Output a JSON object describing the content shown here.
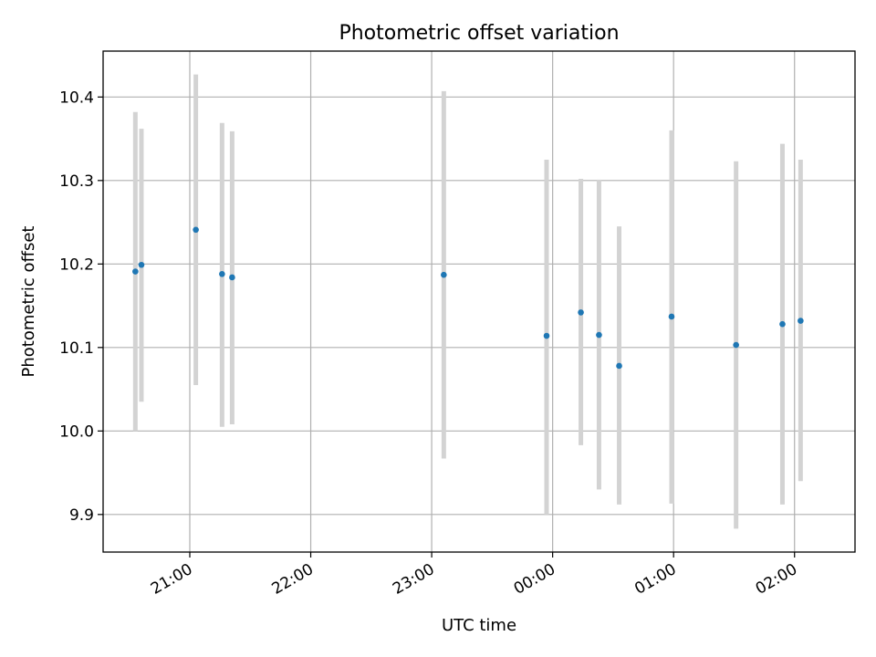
{
  "chart_data": {
    "type": "scatter",
    "title": "Photometric offset variation",
    "xlabel": "UTC time",
    "ylabel": "Photometric offset",
    "x_tick_labels": [
      "21:00",
      "22:00",
      "23:00",
      "00:00",
      "01:00",
      "02:00"
    ],
    "y_tick_labels": [
      "9.9",
      "10.0",
      "10.1",
      "10.2",
      "10.3",
      "10.4"
    ],
    "xlim": [
      "20:17",
      "02:30"
    ],
    "ylim": [
      9.855,
      10.455
    ],
    "grid": true,
    "colors": {
      "point": "#1f77b4",
      "errorbar": "#d3d3d3",
      "grid": "#b0b0b0"
    },
    "series": [
      {
        "x": [
          "20:33",
          "20:36",
          "21:03",
          "21:16",
          "21:21",
          "23:06",
          "23:57",
          "00:14",
          "00:23",
          "00:33",
          "00:59",
          "01:31",
          "01:54",
          "02:03"
        ],
        "y": [
          10.191,
          10.199,
          10.241,
          10.188,
          10.184,
          10.187,
          10.114,
          10.142,
          10.115,
          10.078,
          10.137,
          10.103,
          10.128,
          10.132
        ],
        "y_low": [
          10.0,
          10.035,
          10.055,
          10.005,
          10.008,
          9.967,
          9.9,
          9.983,
          9.93,
          9.912,
          9.913,
          9.883,
          9.912,
          9.94
        ],
        "y_high": [
          10.382,
          10.362,
          10.427,
          10.369,
          10.359,
          10.407,
          10.325,
          10.302,
          10.301,
          10.245,
          10.36,
          10.323,
          10.344,
          10.325
        ]
      }
    ]
  }
}
